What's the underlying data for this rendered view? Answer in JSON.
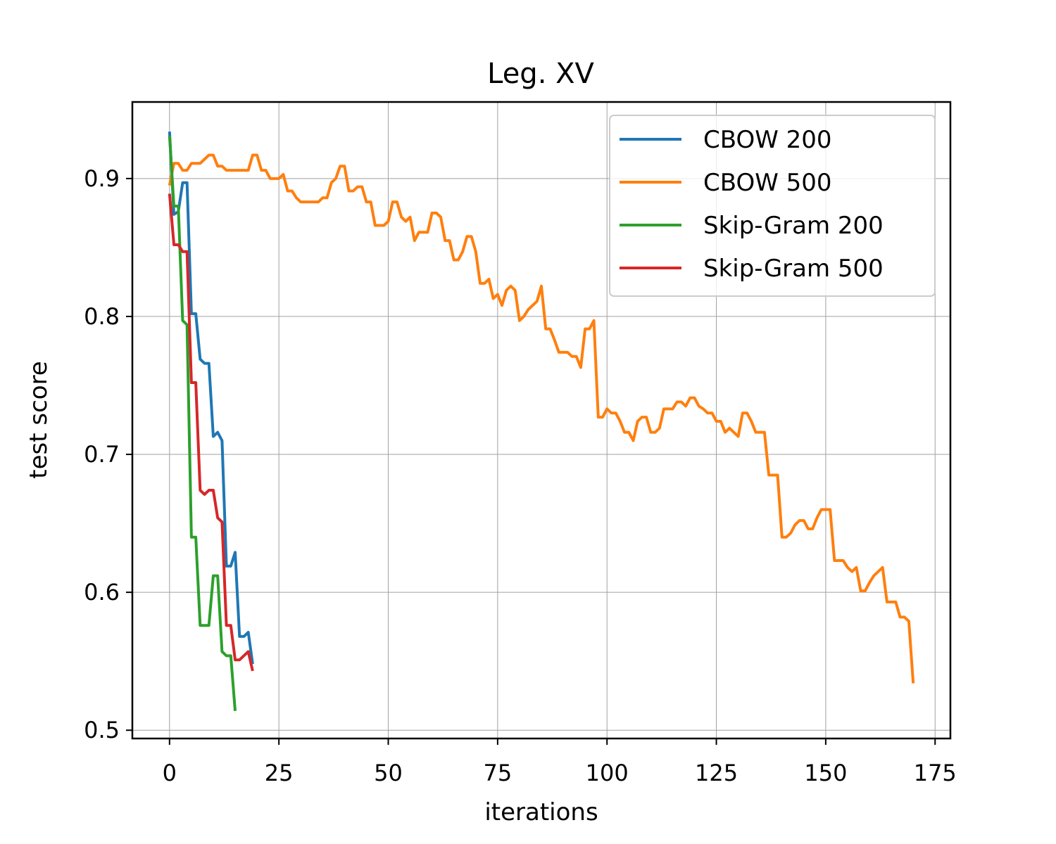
{
  "chart_data": {
    "type": "line",
    "title": "Leg. XV",
    "xlabel": "iterations",
    "ylabel": "test score",
    "xlim": [
      -8.5,
      178.5
    ],
    "ylim": [
      0.494,
      0.9555
    ],
    "xticks": [
      0,
      25,
      50,
      75,
      100,
      125,
      150,
      175
    ],
    "yticks": [
      0.5,
      0.6,
      0.7,
      0.8,
      0.9
    ],
    "ytick_labels": [
      "0.5",
      "0.6",
      "0.7",
      "0.8",
      "0.9"
    ],
    "grid": true,
    "legend_position": "top-right",
    "series": [
      {
        "name": "CBOW 200",
        "color": "#1f77b4",
        "x": [
          0,
          1,
          2,
          3,
          4,
          5,
          6,
          7,
          8,
          9,
          10,
          11,
          12,
          13,
          14,
          15,
          16,
          17,
          18,
          19
        ],
        "y": [
          0.934,
          0.874,
          0.876,
          0.897,
          0.897,
          0.802,
          0.802,
          0.769,
          0.766,
          0.766,
          0.713,
          0.716,
          0.71,
          0.619,
          0.619,
          0.629,
          0.568,
          0.568,
          0.571,
          0.548
        ]
      },
      {
        "name": "CBOW 500",
        "color": "#ff7f0e",
        "x": [
          0,
          1,
          2,
          3,
          4,
          5,
          6,
          7,
          8,
          9,
          10,
          11,
          12,
          13,
          14,
          15,
          16,
          17,
          18,
          19,
          20,
          21,
          22,
          23,
          24,
          25,
          26,
          27,
          28,
          29,
          30,
          31,
          32,
          33,
          34,
          35,
          36,
          37,
          38,
          39,
          40,
          41,
          42,
          43,
          44,
          45,
          46,
          47,
          48,
          49,
          50,
          51,
          52,
          53,
          54,
          55,
          56,
          57,
          58,
          59,
          60,
          61,
          62,
          63,
          64,
          65,
          66,
          67,
          68,
          69,
          70,
          71,
          72,
          73,
          74,
          75,
          76,
          77,
          78,
          79,
          80,
          81,
          82,
          83,
          84,
          85,
          86,
          87,
          88,
          89,
          90,
          91,
          92,
          93,
          94,
          95,
          96,
          97,
          98,
          99,
          100,
          101,
          102,
          103,
          104,
          105,
          106,
          107,
          108,
          109,
          110,
          111,
          112,
          113,
          114,
          115,
          116,
          117,
          118,
          119,
          120,
          121,
          122,
          123,
          124,
          125,
          126,
          127,
          128,
          129,
          130,
          131,
          132,
          133,
          134,
          135,
          136,
          137,
          138,
          139,
          140,
          141,
          142,
          143,
          144,
          145,
          146,
          147,
          148,
          149,
          150,
          151,
          152,
          153,
          154,
          155,
          156,
          157,
          158,
          159,
          160,
          161,
          162,
          163,
          164,
          165,
          166,
          167,
          168,
          169,
          170
        ],
        "y": [
          0.895,
          0.911,
          0.911,
          0.906,
          0.906,
          0.911,
          0.911,
          0.911,
          0.914,
          0.917,
          0.917,
          0.909,
          0.909,
          0.906,
          0.906,
          0.906,
          0.906,
          0.906,
          0.906,
          0.917,
          0.917,
          0.906,
          0.906,
          0.9,
          0.9,
          0.9,
          0.903,
          0.891,
          0.891,
          0.886,
          0.883,
          0.883,
          0.883,
          0.883,
          0.883,
          0.886,
          0.886,
          0.897,
          0.9,
          0.909,
          0.909,
          0.891,
          0.891,
          0.894,
          0.894,
          0.883,
          0.883,
          0.866,
          0.866,
          0.866,
          0.869,
          0.883,
          0.883,
          0.872,
          0.869,
          0.872,
          0.855,
          0.861,
          0.861,
          0.861,
          0.875,
          0.875,
          0.872,
          0.855,
          0.855,
          0.841,
          0.841,
          0.847,
          0.858,
          0.858,
          0.847,
          0.824,
          0.824,
          0.827,
          0.813,
          0.816,
          0.808,
          0.819,
          0.822,
          0.819,
          0.797,
          0.8,
          0.805,
          0.808,
          0.811,
          0.822,
          0.791,
          0.791,
          0.783,
          0.774,
          0.774,
          0.774,
          0.771,
          0.771,
          0.763,
          0.791,
          0.791,
          0.797,
          0.727,
          0.727,
          0.733,
          0.73,
          0.73,
          0.724,
          0.716,
          0.716,
          0.71,
          0.724,
          0.727,
          0.727,
          0.716,
          0.716,
          0.719,
          0.733,
          0.733,
          0.733,
          0.738,
          0.738,
          0.735,
          0.741,
          0.741,
          0.735,
          0.733,
          0.73,
          0.73,
          0.724,
          0.724,
          0.716,
          0.719,
          0.716,
          0.713,
          0.73,
          0.73,
          0.724,
          0.716,
          0.716,
          0.716,
          0.685,
          0.685,
          0.685,
          0.64,
          0.64,
          0.643,
          0.649,
          0.652,
          0.652,
          0.646,
          0.646,
          0.654,
          0.66,
          0.66,
          0.66,
          0.623,
          0.623,
          0.623,
          0.618,
          0.615,
          0.618,
          0.601,
          0.601,
          0.607,
          0.612,
          0.615,
          0.618,
          0.593,
          0.593,
          0.593,
          0.582,
          0.582,
          0.579,
          0.534
        ]
      },
      {
        "name": "Skip-Gram 200",
        "color": "#2ca02c",
        "x": [
          0,
          1,
          2,
          3,
          4,
          5,
          6,
          7,
          8,
          9,
          10,
          11,
          12,
          13,
          14,
          15
        ],
        "y": [
          0.931,
          0.88,
          0.88,
          0.797,
          0.794,
          0.64,
          0.64,
          0.576,
          0.576,
          0.576,
          0.612,
          0.612,
          0.557,
          0.554,
          0.554,
          0.514
        ]
      },
      {
        "name": "Skip-Gram 500",
        "color": "#d62728",
        "x": [
          0,
          1,
          2,
          3,
          4,
          5,
          6,
          7,
          8,
          9,
          10,
          11,
          12,
          13,
          14,
          15,
          16,
          17,
          18,
          19
        ],
        "y": [
          0.889,
          0.852,
          0.852,
          0.847,
          0.847,
          0.752,
          0.752,
          0.674,
          0.671,
          0.674,
          0.674,
          0.654,
          0.651,
          0.576,
          0.576,
          0.551,
          0.551,
          0.554,
          0.557,
          0.543
        ]
      }
    ]
  }
}
